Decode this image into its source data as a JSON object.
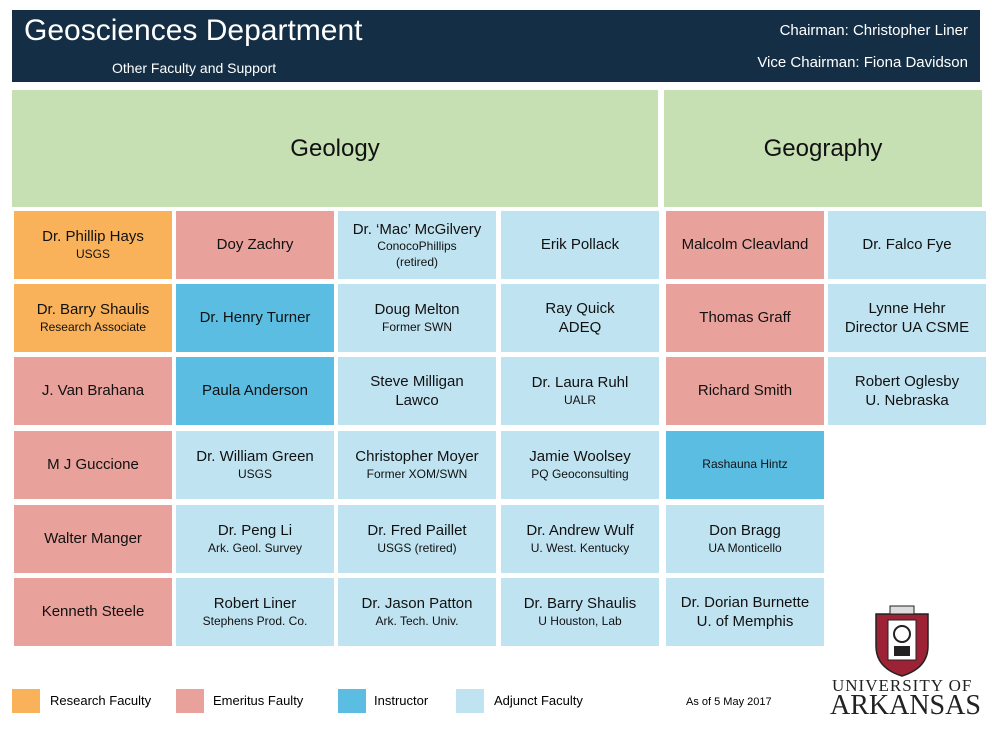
{
  "header": {
    "title": "Geosciences Department",
    "subtitle": "Other Faculty and Support",
    "chairman": "Chairman: Christopher Liner",
    "vice_chairman": "Vice Chairman: Fiona Davidson"
  },
  "departments": [
    {
      "title": "Geology",
      "columns": [
        [
          {
            "lines": [
              "Dr. Phillip Hays"
            ],
            "details": [
              "USGS"
            ],
            "color": "#f9b25a"
          },
          {
            "lines": [
              "Dr. Barry Shaulis"
            ],
            "details": [
              "Research Associate"
            ],
            "color": "#f9b25a"
          },
          {
            "lines": [
              "J. Van Brahana"
            ],
            "details": [],
            "color": "#e8a19b"
          },
          {
            "lines": [
              "M J Guccione"
            ],
            "details": [],
            "color": "#e8a19b"
          },
          {
            "lines": [
              "Walter Manger"
            ],
            "details": [],
            "color": "#e8a19b"
          },
          {
            "lines": [
              "Kenneth Steele"
            ],
            "details": [],
            "color": "#e8a19b"
          }
        ],
        [
          {
            "lines": [
              "Doy Zachry"
            ],
            "details": [],
            "color": "#e8a19b"
          },
          {
            "lines": [
              "Dr. Henry Turner"
            ],
            "details": [],
            "color": "#5cbde2"
          },
          {
            "lines": [
              "Paula Anderson"
            ],
            "details": [],
            "color": "#5cbde2"
          },
          {
            "lines": [
              "Dr. William Green"
            ],
            "details": [
              "USGS"
            ],
            "color": "#c0e3f1"
          },
          {
            "lines": [
              "Dr. Peng Li"
            ],
            "details": [
              "Ark. Geol. Survey"
            ],
            "color": "#c0e3f1"
          },
          {
            "lines": [
              "Robert Liner"
            ],
            "details": [
              "Stephens Prod. Co."
            ],
            "color": "#c0e3f1"
          }
        ],
        [
          {
            "lines": [
              "Dr. ‘Mac’ McGilvery"
            ],
            "details": [
              "ConocoPhillips",
              "(retired)"
            ],
            "color": "#c0e3f1"
          },
          {
            "lines": [
              "Doug Melton"
            ],
            "details": [
              "Former SWN"
            ],
            "color": "#c0e3f1"
          },
          {
            "lines": [
              "Steve Milligan",
              "Lawco"
            ],
            "details": [],
            "color": "#c0e3f1"
          },
          {
            "lines": [
              "Christopher Moyer"
            ],
            "details": [
              "Former XOM/SWN"
            ],
            "color": "#c0e3f1"
          },
          {
            "lines": [
              "Dr. Fred Paillet"
            ],
            "details": [
              "USGS (retired)"
            ],
            "color": "#c0e3f1"
          },
          {
            "lines": [
              "Dr. Jason Patton"
            ],
            "details": [
              "Ark. Tech. Univ."
            ],
            "color": "#c0e3f1"
          }
        ],
        [
          {
            "lines": [
              "Erik Pollack"
            ],
            "details": [],
            "color": "#c0e3f1"
          },
          {
            "lines": [
              "Ray Quick",
              "ADEQ"
            ],
            "details": [],
            "color": "#c0e3f1"
          },
          {
            "lines": [
              "Dr. Laura Ruhl"
            ],
            "details": [
              "UALR"
            ],
            "color": "#c0e3f1"
          },
          {
            "lines": [
              "Jamie Woolsey"
            ],
            "details": [
              "PQ Geoconsulting"
            ],
            "color": "#c0e3f1"
          },
          {
            "lines": [
              "Dr. Andrew Wulf"
            ],
            "details": [
              "U. West. Kentucky"
            ],
            "color": "#c0e3f1"
          },
          {
            "lines": [
              "Dr. Barry Shaulis"
            ],
            "details": [
              "U Houston, Lab"
            ],
            "color": "#c0e3f1"
          }
        ]
      ]
    },
    {
      "title": "Geography",
      "columns": [
        [
          {
            "lines": [
              "Malcolm Cleavland"
            ],
            "details": [],
            "color": "#e8a19b"
          },
          {
            "lines": [
              "Thomas Graff"
            ],
            "details": [],
            "color": "#e8a19b"
          },
          {
            "lines": [
              "Richard Smith"
            ],
            "details": [],
            "color": "#e8a19b"
          },
          {
            "lines": [],
            "details": [
              "Rashauna Hintz"
            ],
            "color": "#5cbde2"
          },
          {
            "lines": [
              "Don Bragg"
            ],
            "details": [
              "UA Monticello"
            ],
            "color": "#c0e3f1"
          },
          {
            "lines": [
              "Dr. Dorian Burnette",
              "U. of Memphis"
            ],
            "details": [],
            "color": "#c0e3f1"
          }
        ],
        [
          {
            "lines": [
              "Dr. Falco Fye"
            ],
            "details": [],
            "color": "#c0e3f1"
          },
          {
            "lines": [
              "Lynne Hehr",
              "Director UA CSME"
            ],
            "details": [],
            "color": "#c0e3f1"
          },
          {
            "lines": [
              "Robert Oglesby",
              "U. Nebraska"
            ],
            "details": [],
            "color": "#c0e3f1"
          }
        ]
      ]
    }
  ],
  "legend": [
    {
      "label": "Research Faculty",
      "color": "#f9b25a"
    },
    {
      "label": "Emeritus Faulty",
      "color": "#e8a19b"
    },
    {
      "label": "Instructor",
      "color": "#5cbde2"
    },
    {
      "label": "Adjunct Faculty",
      "color": "#c0e3f1"
    }
  ],
  "footer": {
    "date": "As of 5 May 2017",
    "logo_top": "UNIVERSITY OF",
    "logo_bottom": "ARKANSAS"
  }
}
